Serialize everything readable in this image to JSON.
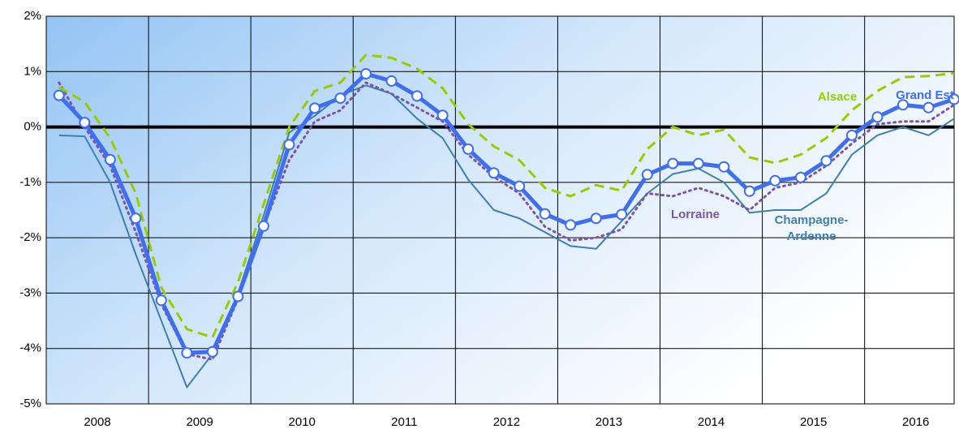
{
  "chart_data": {
    "type": "line",
    "x": [
      2008.125,
      2008.375,
      2008.625,
      2008.875,
      2009.125,
      2009.375,
      2009.625,
      2009.875,
      2010.125,
      2010.375,
      2010.625,
      2010.875,
      2011.125,
      2011.375,
      2011.625,
      2011.875,
      2012.125,
      2012.375,
      2012.625,
      2012.875,
      2013.125,
      2013.375,
      2013.625,
      2013.875,
      2014.125,
      2014.375,
      2014.625,
      2014.875,
      2015.125,
      2015.375,
      2015.625,
      2015.875,
      2016.125,
      2016.375,
      2016.625,
      2016.875
    ],
    "series": [
      {
        "name": "Champagne-Ardenne",
        "color": "#3f7fb0",
        "style": "solid",
        "width": 2,
        "values": [
          -0.15,
          -0.17,
          -1.0,
          -2.3,
          -3.5,
          -4.7,
          -4.1,
          -3.0,
          -1.6,
          -0.1,
          0.2,
          0.57,
          0.75,
          0.6,
          0.15,
          -0.2,
          -0.95,
          -1.5,
          -1.65,
          -1.9,
          -2.15,
          -2.2,
          -1.7,
          -1.2,
          -0.85,
          -0.75,
          -1.0,
          -1.55,
          -1.5,
          -1.5,
          -1.2,
          -0.5,
          -0.15,
          0.0,
          -0.15,
          0.15
        ]
      },
      {
        "name": "Lorraine",
        "color": "#7d55a8",
        "style": "dotted",
        "width": 3,
        "values": [
          0.8,
          0.0,
          -0.7,
          -1.9,
          -3.2,
          -4.1,
          -4.2,
          -3.1,
          -1.8,
          -0.6,
          0.1,
          0.3,
          0.8,
          0.6,
          0.35,
          0.1,
          -0.5,
          -0.9,
          -1.2,
          -1.8,
          -2.05,
          -2.0,
          -1.85,
          -1.2,
          -1.25,
          -1.1,
          -1.25,
          -1.5,
          -1.1,
          -1.0,
          -0.7,
          -0.3,
          0.05,
          0.1,
          0.1,
          0.4
        ]
      },
      {
        "name": "Alsace",
        "color": "#99cc00",
        "style": "dashed",
        "width": 3,
        "values": [
          0.72,
          0.45,
          -0.2,
          -1.2,
          -2.9,
          -3.65,
          -3.8,
          -2.8,
          -1.4,
          0.0,
          0.65,
          0.8,
          1.3,
          1.25,
          1.05,
          0.7,
          0.05,
          -0.35,
          -0.6,
          -1.1,
          -1.25,
          -1.05,
          -1.15,
          -0.4,
          0.0,
          -0.15,
          -0.05,
          -0.55,
          -0.65,
          -0.5,
          -0.2,
          0.3,
          0.65,
          0.9,
          0.92,
          0.97
        ]
      },
      {
        "name": "Grand Est",
        "color": "#3f6ff0",
        "style": "solid",
        "width": 5,
        "markers": true,
        "values": [
          0.57,
          0.08,
          -0.59,
          -1.65,
          -3.13,
          -4.08,
          -4.06,
          -3.06,
          -1.79,
          -0.32,
          0.34,
          0.52,
          0.96,
          0.83,
          0.56,
          0.21,
          -0.4,
          -0.83,
          -1.07,
          -1.57,
          -1.77,
          -1.65,
          -1.58,
          -0.86,
          -0.66,
          -0.66,
          -0.72,
          -1.16,
          -0.97,
          -0.91,
          -0.61,
          -0.15,
          0.18,
          0.4,
          0.35,
          0.5
        ]
      }
    ],
    "xlim": [
      2008,
      2016.875
    ],
    "xticks": [
      {
        "value": 2008.5,
        "label": "2008"
      },
      {
        "value": 2009.5,
        "label": "2009"
      },
      {
        "value": 2010.5,
        "label": "2010"
      },
      {
        "value": 2011.5,
        "label": "2011"
      },
      {
        "value": 2012.5,
        "label": "2012"
      },
      {
        "value": 2013.5,
        "label": "2013"
      },
      {
        "value": 2014.5,
        "label": "2014"
      },
      {
        "value": 2015.5,
        "label": "2015"
      },
      {
        "value": 2016.5,
        "label": "2016"
      }
    ],
    "xgrid": [
      2009,
      2010,
      2011,
      2012,
      2013,
      2014,
      2015,
      2016
    ],
    "ylim": [
      -5,
      2
    ],
    "yticks": [
      {
        "value": -5,
        "label": "-5%"
      },
      {
        "value": -4,
        "label": "-4%"
      },
      {
        "value": -3,
        "label": "-3%"
      },
      {
        "value": -2,
        "label": "-2%"
      },
      {
        "value": -1,
        "label": "-1%"
      },
      {
        "value": 0,
        "label": "0%"
      },
      {
        "value": 1,
        "label": "1%"
      },
      {
        "value": 2,
        "label": "2%"
      }
    ],
    "grid": true
  }
}
